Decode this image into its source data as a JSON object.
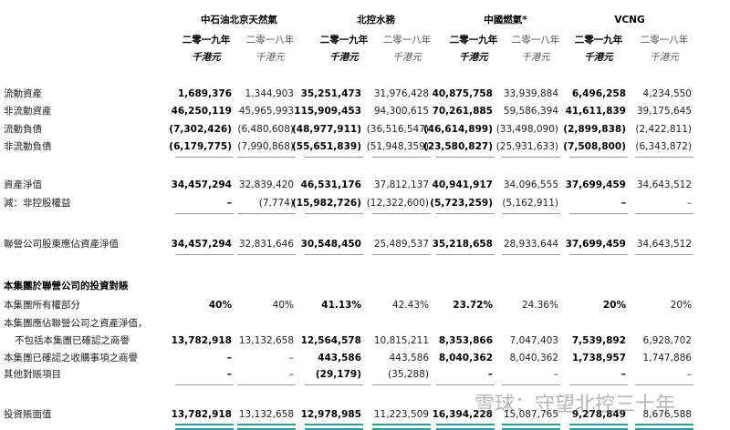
{
  "header": {
    "companies": [
      "中石油北京天然氣",
      "北控水務",
      "中國燃氣*",
      "VCNG"
    ],
    "years": [
      "二零一九年",
      "二零一八年"
    ],
    "unit": "千港元"
  },
  "section_title": "本集團於聯營公司的投資對賬",
  "rows": [
    {
      "label": "流動資產",
      "values": [
        "1,689,376",
        "1,344,903",
        "35,251,473",
        "31,976,428",
        "40,875,758",
        "33,939,884",
        "6,496,258",
        "4,234,550"
      ]
    },
    {
      "label": "非流動資產",
      "values": [
        "46,250,119",
        "45,965,993",
        "115,909,453",
        "94,300,615",
        "70,261,885",
        "59,586,394",
        "41,611,839",
        "39,175,645"
      ]
    },
    {
      "label": "流動負債",
      "values": [
        "(7,302,426)",
        "(6,480,608)",
        "(48,977,911)",
        "(36,516,547)",
        "(46,614,899)",
        "(33,498,090)",
        "(2,899,838)",
        "(2,422,811)"
      ]
    },
    {
      "label": "非流動負債",
      "values": [
        "(6,179,775)",
        "(7,990,868)",
        "(55,651,839)",
        "(51,948,359)",
        "(23,580,827)",
        "(25,931,633)",
        "(7,508,800)",
        "(6,343,872)"
      ]
    },
    {
      "label": "資產淨值",
      "values": [
        "34,457,294",
        "32,839,420",
        "46,531,176",
        "37,812,137",
        "40,941,917",
        "34,096,555",
        "37,699,459",
        "34,643,512"
      ]
    },
    {
      "label": "減：非控股權益",
      "values": [
        "–",
        "(7,774)",
        "(15,982,726)",
        "(12,322,600)",
        "(5,723,259)",
        "(5,162,911)",
        "–",
        "–"
      ]
    },
    {
      "label": "聯營公司股東應佔資產淨值",
      "values": [
        "34,457,294",
        "32,831,646",
        "30,548,450",
        "25,489,537",
        "35,218,658",
        "28,933,644",
        "37,699,459",
        "34,643,512"
      ]
    },
    {
      "label": "本集團所有權部分",
      "values": [
        "40%",
        "40%",
        "41.13%",
        "42.43%",
        "23.72%",
        "24.36%",
        "20%",
        "20%"
      ]
    },
    {
      "label": "本集團應佔聯營公司之資產淨值，",
      "values": []
    },
    {
      "label": "不包括本集團已確認之商譽",
      "values": [
        "13,782,918",
        "13,132,658",
        "12,564,578",
        "10,815,211",
        "8,353,866",
        "7,047,403",
        "7,539,892",
        "6,928,702"
      ]
    },
    {
      "label": "本集團已確認之收購事項之商譽",
      "values": [
        "–",
        "–",
        "443,586",
        "443,586",
        "8,040,362",
        "8,040,362",
        "1,738,957",
        "1,747,886"
      ]
    },
    {
      "label": "其他對賬項目",
      "values": [
        "–",
        "–",
        "(29,179)",
        "(35,288)",
        "–",
        "–",
        "–",
        "–"
      ]
    },
    {
      "label": "投資賬面值",
      "values": [
        "13,782,918",
        "13,132,658",
        "12,978,985",
        "11,223,509",
        "16,394,228",
        "15,087,765",
        "9,278,849",
        "8,676,588"
      ]
    }
  ],
  "watermark": "雪球：守望北控三十年"
}
